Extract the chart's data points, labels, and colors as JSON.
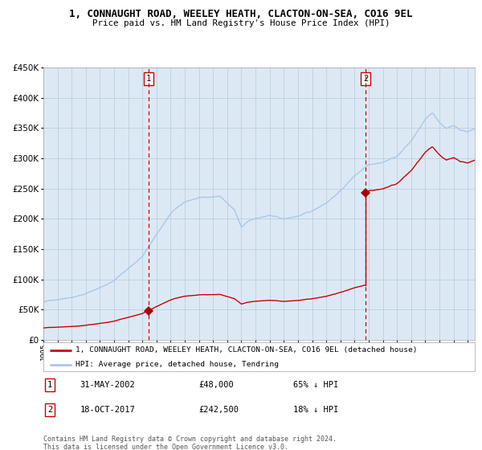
{
  "title": "1, CONNAUGHT ROAD, WEELEY HEATH, CLACTON-ON-SEA, CO16 9EL",
  "subtitle": "Price paid vs. HM Land Registry's House Price Index (HPI)",
  "legend_line1": "1, CONNAUGHT ROAD, WEELEY HEATH, CLACTON-ON-SEA, CO16 9EL (detached house)",
  "legend_line2": "HPI: Average price, detached house, Tendring",
  "purchase1_date_label": "31-MAY-2002",
  "purchase1_price": 48000,
  "purchase1_pct": "65% ↓ HPI",
  "purchase2_date_label": "18-OCT-2017",
  "purchase2_price": 242500,
  "purchase2_pct": "18% ↓ HPI",
  "purchase1_year": 2002.42,
  "purchase2_year": 2017.8,
  "hpi_color": "#a8c8e8",
  "price_color": "#cc0000",
  "bg_color": "#dce9f5",
  "plot_bg": "#ffffff",
  "grid_color": "#b8c8d8",
  "marker_color": "#aa0000",
  "ylim": [
    0,
    450000
  ],
  "xlim_start": 1995.0,
  "xlim_end": 2025.5,
  "footer": "Contains HM Land Registry data © Crown copyright and database right 2024.\nThis data is licensed under the Open Government Licence v3.0."
}
